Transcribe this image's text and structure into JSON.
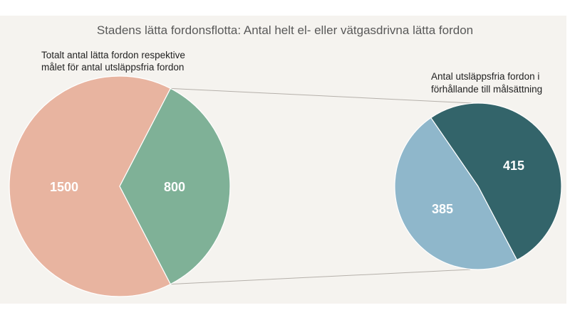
{
  "chart_data": {
    "type": "pie",
    "subtype": "pie-of-pie",
    "title": "Stadens lätta fordonsflotta: Antal helt el- eller vätgasdrivna lätta fordon",
    "charts": [
      {
        "subtitle": "Totalt antal lätta fordon respektive målet för antal utsläppsfria fordon",
        "subtitle_lines": [
          "Totalt antal lätta fordon respektive",
          "målet för antal utsläppsfria fordon"
        ],
        "slices": [
          {
            "label": "1500",
            "value": 1500,
            "color": "#e8b4a0"
          },
          {
            "label": "800",
            "value": 800,
            "color": "#7fb197"
          }
        ]
      },
      {
        "subtitle": "Antal utsläppsfria fordon i förhållande till målsättning",
        "subtitle_lines": [
          "Antal utsläppsfria fordon i",
          "förhållande till målsättning"
        ],
        "slices": [
          {
            "label": "415",
            "value": 415,
            "color": "#33646a"
          },
          {
            "label": "385",
            "value": 385,
            "color": "#8fb7cb"
          }
        ]
      }
    ],
    "background": "#f5f3ef",
    "connector_color": "#b5b0aa"
  }
}
